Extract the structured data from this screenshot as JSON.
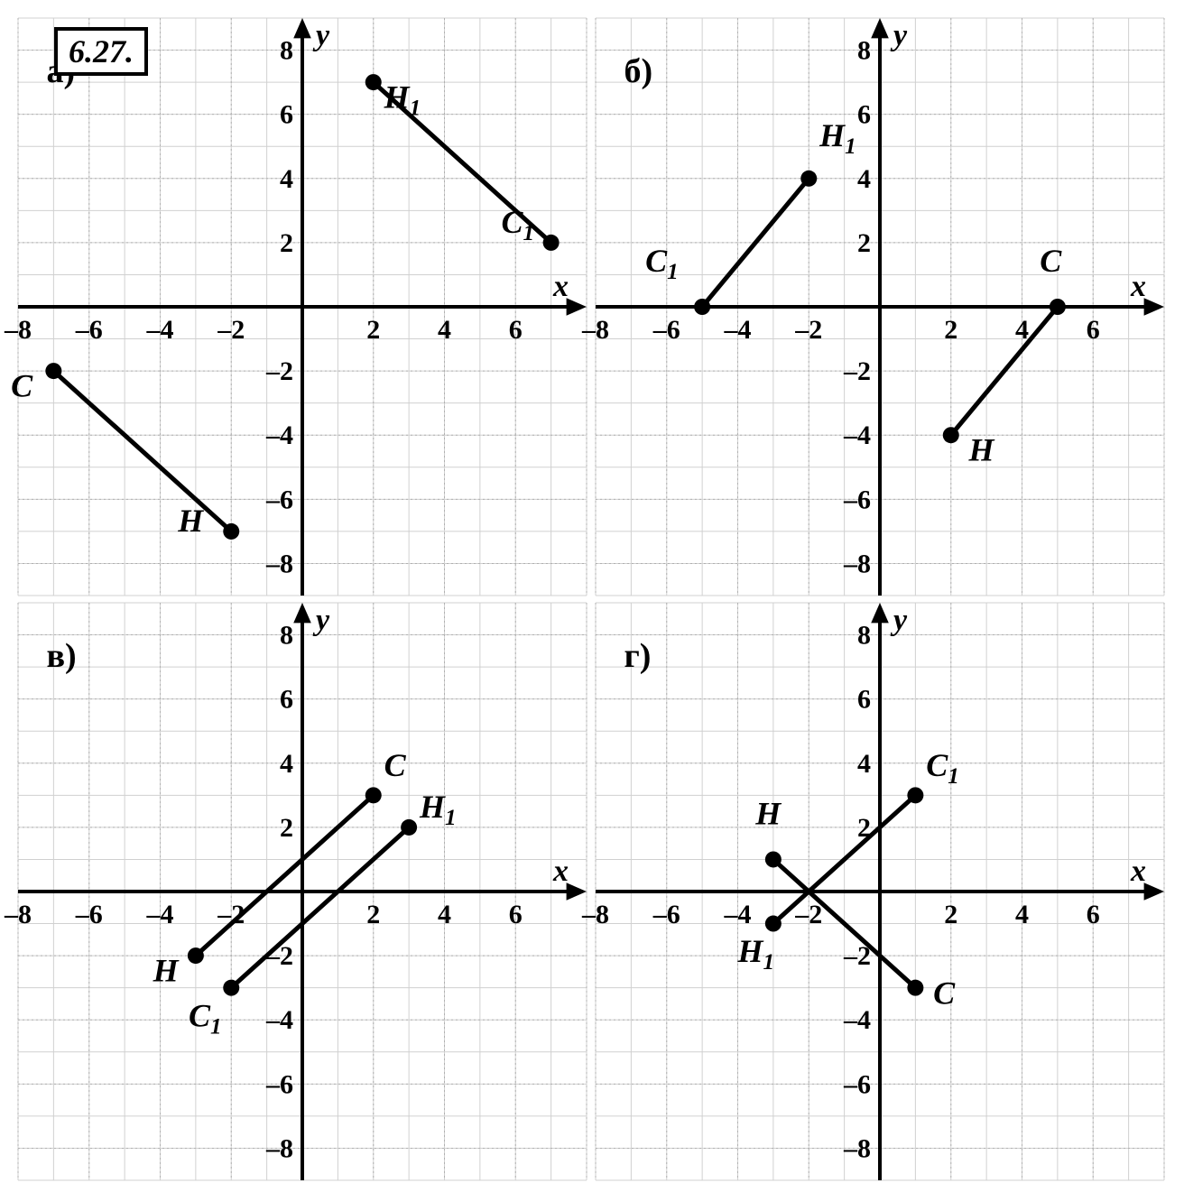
{
  "problem_number": "6.27.",
  "colors": {
    "background": "#ffffff",
    "grid_minor": "#d0d0d0",
    "grid_major": "#b0b0b0",
    "axis": "#000000",
    "line": "#000000",
    "point_fill": "#000000",
    "text": "#000000",
    "label_box_border": "#000000"
  },
  "fonts": {
    "axis_label_size": 34,
    "tick_label_size": 30,
    "point_label_size": 36,
    "panel_label_size": 38,
    "problem_number_size": 36,
    "family": "Georgia, Times New Roman, serif",
    "style": "italic"
  },
  "chart_config": {
    "xlim": [
      -8,
      8
    ],
    "ylim": [
      -9,
      9
    ],
    "xtick_step": 2,
    "ytick_step": 2,
    "xticks": [
      -8,
      -6,
      -4,
      -2,
      2,
      4,
      6
    ],
    "yticks": [
      -8,
      -6,
      -4,
      -2,
      2,
      4,
      6,
      8
    ],
    "line_width": 5,
    "point_radius": 9,
    "axis_width": 4,
    "grid_width": 1,
    "arrow_size": 14
  },
  "panels": [
    {
      "id": "a",
      "label": "а)",
      "segments": [
        {
          "from": [
            -7,
            -2
          ],
          "to": [
            -2,
            -7
          ],
          "labels": {
            "C": [
              -7,
              -2
            ],
            "H": [
              -2,
              -7
            ]
          },
          "label_offsets": {
            "C": [
              -1.2,
              -0.8
            ],
            "H": [
              -1.5,
              0
            ]
          }
        },
        {
          "from": [
            2,
            7
          ],
          "to": [
            7,
            2
          ],
          "labels": {
            "H_1": [
              2,
              7
            ],
            "C_1": [
              7,
              2
            ]
          },
          "label_offsets": {
            "H_1": [
              0.3,
              -0.8
            ],
            "C_1": [
              -1.4,
              0.3
            ]
          }
        }
      ]
    },
    {
      "id": "b",
      "label": "б)",
      "segments": [
        {
          "from": [
            2,
            -4
          ],
          "to": [
            5,
            0
          ],
          "labels": {
            "H": [
              2,
              -4
            ],
            "C": [
              5,
              0
            ]
          },
          "label_offsets": {
            "H": [
              0.5,
              -0.8
            ],
            "C": [
              -0.5,
              1.1
            ]
          }
        },
        {
          "from": [
            -5,
            0
          ],
          "to": [
            -2,
            4
          ],
          "labels": {
            "C_1": [
              -5,
              0
            ],
            "H_1": [
              -2,
              4
            ]
          },
          "label_offsets": {
            "C_1": [
              -1.6,
              1.1
            ],
            "H_1": [
              0.3,
              1.0
            ]
          }
        }
      ]
    },
    {
      "id": "v",
      "label": "в)",
      "segments": [
        {
          "from": [
            -3,
            -2
          ],
          "to": [
            2,
            3
          ],
          "labels": {
            "H": [
              -3,
              -2
            ],
            "C": [
              2,
              3
            ]
          },
          "label_offsets": {
            "H": [
              -1.2,
              -0.8
            ],
            "C": [
              0.3,
              0.6
            ]
          }
        },
        {
          "from": [
            -2,
            -3
          ],
          "to": [
            3,
            2
          ],
          "labels": {
            "C_1": [
              -2,
              -3
            ],
            "H_1": [
              3,
              2
            ]
          },
          "label_offsets": {
            "C_1": [
              -1.2,
              -1.2
            ],
            "H_1": [
              0.3,
              0.3
            ]
          }
        }
      ]
    },
    {
      "id": "g",
      "label": "г)",
      "segments": [
        {
          "from": [
            -3,
            1
          ],
          "to": [
            1,
            -3
          ],
          "labels": {
            "H": [
              -3,
              1
            ],
            "C": [
              1,
              -3
            ]
          },
          "label_offsets": {
            "H": [
              -0.5,
              1.1
            ],
            "C": [
              0.5,
              -0.5
            ]
          }
        },
        {
          "from": [
            -3,
            -1
          ],
          "to": [
            1,
            3
          ],
          "labels": {
            "H_1": [
              -3,
              -1
            ],
            "C_1": [
              1,
              3
            ]
          },
          "label_offsets": {
            "H_1": [
              -1.0,
              -1.2
            ],
            "C_1": [
              0.3,
              0.6
            ]
          }
        }
      ]
    }
  ],
  "axis_labels": {
    "x": "x",
    "y": "y"
  }
}
